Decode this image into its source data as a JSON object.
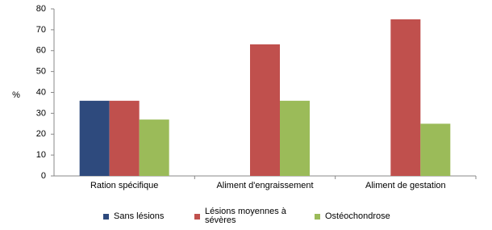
{
  "chart_data": {
    "type": "bar",
    "y_label": "%",
    "categories": [
      "Ration spécifique",
      "Aliment d'engraissement",
      "Aliment de gestation"
    ],
    "series": [
      {
        "name": "Sans lésions",
        "color": "#2e4a7d",
        "values": [
          36,
          null,
          null
        ]
      },
      {
        "name": "Lésions moyennes à sévères",
        "color": "#c0504d",
        "values": [
          36,
          63,
          75
        ]
      },
      {
        "name": "Ostéochondrose",
        "color": "#9bbb59",
        "values": [
          27,
          36,
          25
        ]
      }
    ],
    "ylim": [
      0,
      80
    ],
    "yticks": [
      0,
      10,
      20,
      30,
      40,
      50,
      60,
      70,
      80
    ],
    "grid": false
  }
}
